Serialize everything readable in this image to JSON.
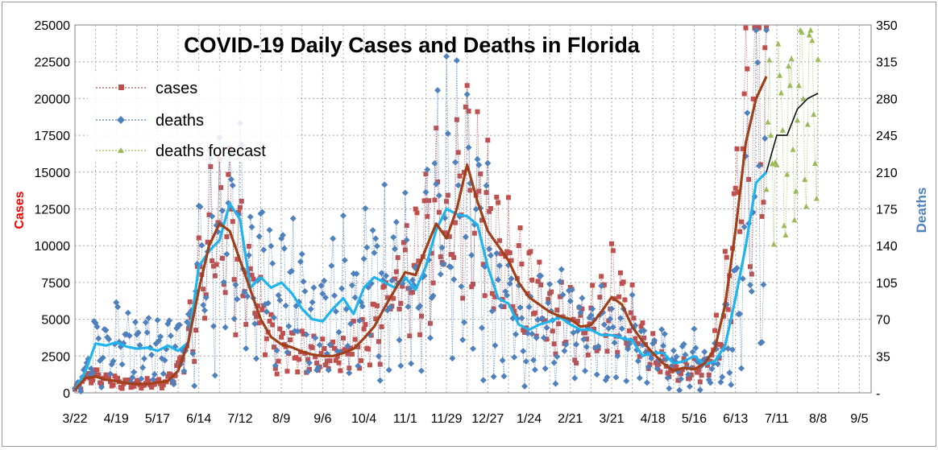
{
  "chart_data": {
    "type": "line",
    "title": "COVID-19 Daily Cases and Deaths in Florida",
    "ylabel_left": "Cases",
    "ylabel_right": "Deaths",
    "xlabel": "",
    "x_ticks": [
      "3/22",
      "4/19",
      "5/17",
      "6/14",
      "7/12",
      "8/9",
      "9/6",
      "10/4",
      "11/1",
      "11/29",
      "12/27",
      "1/24",
      "2/21",
      "3/21",
      "4/18",
      "5/16",
      "6/13",
      "7/11",
      "8/8",
      "9/5"
    ],
    "y_left_ticks": [
      "0",
      "2500",
      "5000",
      "7500",
      "10000",
      "12500",
      "15000",
      "17500",
      "20000",
      "22500",
      "25000"
    ],
    "y_right_ticks": [
      "-",
      "35",
      "70",
      "105",
      "140",
      "175",
      "210",
      "245",
      "280",
      "315",
      "350"
    ],
    "ylim_left": [
      0,
      25000
    ],
    "ylim_right": [
      0,
      350
    ],
    "grid": true,
    "legend_position": "top-left",
    "legend": [
      {
        "key": "cases",
        "label": "cases",
        "color": "#c0504d"
      },
      {
        "key": "deaths",
        "label": "deaths",
        "color": "#4f81bd"
      },
      {
        "key": "forecast",
        "label": "deaths forecast",
        "color": "#9bbb59"
      }
    ],
    "colors": {
      "cases_points": "#c0504d",
      "cases_avg": "#a0401a",
      "deaths_points": "#4f81bd",
      "deaths_avg": "#1fb4ee",
      "forecast_points": "#9bbb59",
      "forecast_avg": "#111111",
      "title_color": "#000000",
      "left_label_color": "#ff0000",
      "right_label_color": "#4f81bd"
    },
    "series": [
      {
        "name": "cases 7-day average",
        "axis": "left",
        "x_start_day": 0,
        "step_days": 7,
        "values": [
          200,
          1000,
          1100,
          900,
          800,
          650,
          600,
          600,
          700,
          800,
          1500,
          3500,
          7000,
          10000,
          11500,
          11000,
          9000,
          7000,
          5000,
          3800,
          3300,
          3100,
          2800,
          2600,
          2500,
          2500,
          2700,
          3000,
          3700,
          4500,
          5800,
          7000,
          8200,
          8000,
          9800,
          11500,
          10500,
          12500,
          15500,
          13000,
          11000,
          10000,
          9000,
          7500,
          6500,
          6000,
          5500,
          5200,
          5000,
          4500,
          4600,
          5500,
          6500,
          6000,
          4500,
          3500,
          2700,
          2000,
          1500,
          1700,
          1600,
          2000,
          3000,
          6000,
          11000,
          17000,
          20000,
          21500
        ]
      },
      {
        "name": "deaths 7-day average",
        "axis": "right",
        "x_start_day": 0,
        "step_days": 7,
        "values": [
          3,
          20,
          47,
          45,
          48,
          44,
          42,
          43,
          40,
          45,
          40,
          48,
          120,
          135,
          145,
          180,
          165,
          100,
          110,
          100,
          105,
          95,
          80,
          70,
          68,
          80,
          90,
          75,
          100,
          110,
          105,
          100,
          110,
          98,
          120,
          155,
          175,
          170,
          168,
          160,
          120,
          90,
          85,
          65,
          60,
          65,
          68,
          72,
          65,
          60,
          60,
          55,
          55,
          52,
          50,
          35,
          38,
          38,
          28,
          30,
          35,
          27,
          30,
          45,
          90,
          140,
          200,
          210
        ]
      },
      {
        "name": "deaths forecast",
        "axis": "right",
        "x_start_day": 469,
        "step_days": 7,
        "values": [
          210,
          245,
          245,
          270,
          280,
          285
        ]
      }
    ]
  }
}
